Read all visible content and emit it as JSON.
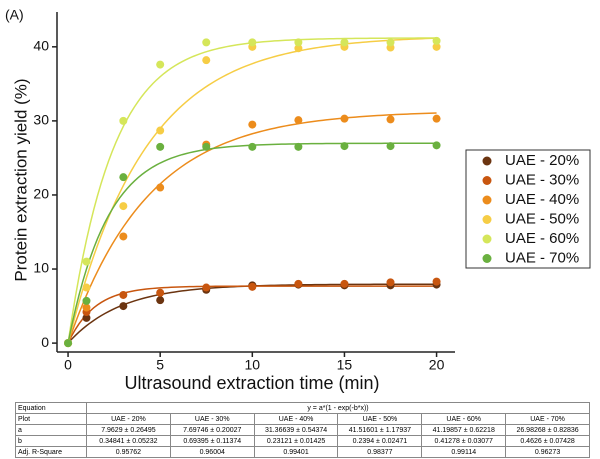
{
  "panel_label": "(A)",
  "chart_data": {
    "type": "scatter",
    "x_label": "Ultrasound extraction time (min)",
    "y_label": "Protein extraction yield (%)",
    "x": [
      0,
      1,
      3,
      5,
      7.5,
      10,
      12.5,
      15,
      17.5,
      20
    ],
    "xlim": [
      -0.6,
      21
    ],
    "xticks": [
      0,
      5,
      10,
      15,
      20
    ],
    "ylim": [
      -1.2,
      44.7
    ],
    "yticks": [
      0,
      10,
      20,
      30,
      40
    ],
    "grid": false,
    "legend": "right",
    "series": [
      {
        "name": "UAE - 20%",
        "color": "#6b3410",
        "values": [
          0,
          3.4,
          5,
          5.8,
          7.2,
          7.8,
          7.9,
          7.8,
          7.8,
          7.9
        ],
        "fit": {
          "a": 7.9629,
          "b": 0.34841
        }
      },
      {
        "name": "UAE - 30%",
        "color": "#c8560f",
        "values": [
          0,
          4.2,
          6.5,
          6.8,
          7.5,
          7.6,
          8,
          8,
          8.2,
          8.3
        ],
        "fit": {
          "a": 7.69746,
          "b": 0.69395
        }
      },
      {
        "name": "UAE - 40%",
        "color": "#ec8c1c",
        "values": [
          0,
          4.8,
          14.4,
          21,
          26.8,
          29.5,
          30.1,
          30.3,
          30.2,
          30.3
        ],
        "fit": {
          "a": 31.36639,
          "b": 0.23121
        }
      },
      {
        "name": "UAE - 50%",
        "color": "#f6cd45",
        "values": [
          0,
          7.5,
          18.5,
          28.7,
          38.2,
          40,
          39.8,
          40,
          39.9,
          40
        ],
        "fit": {
          "a": 41.51601,
          "b": 0.2394
        }
      },
      {
        "name": "UAE - 60%",
        "color": "#d5e65a",
        "values": [
          0,
          11,
          30,
          37.6,
          40.6,
          40.6,
          40.6,
          40.6,
          40.6,
          40.8
        ],
        "fit": {
          "a": 41.19857,
          "b": 0.41278
        }
      },
      {
        "name": "UAE - 70%",
        "color": "#6ab03f",
        "values": [
          0,
          5.7,
          22.4,
          26.5,
          26.5,
          26.5,
          26.5,
          26.6,
          26.6,
          26.7
        ],
        "fit": {
          "a": 26.98268,
          "b": 0.4626
        }
      }
    ]
  },
  "table": {
    "rows": [
      [
        "Equation",
        "y = a*(1 - exp(-b*x))"
      ],
      [
        "Plot",
        "UAE - 20%",
        "UAE - 30%",
        "UAE - 40%",
        "UAE - 50%",
        "UAE - 60%",
        "UAE - 70%"
      ],
      [
        "a",
        "7.9629 ± 0.26495",
        "7.69746 ± 0.20027",
        "31.36639 ± 0.54374",
        "41.51601 ± 1.17937",
        "41.19857 ± 0.62218",
        "26.98268 ± 0.82836"
      ],
      [
        "b",
        "0.34841 ± 0.05232",
        "0.69395 ± 0.11374",
        "0.23121 ± 0.01425",
        "0.2394 ± 0.02471",
        "0.41278 ± 0.03077",
        "0.4626 ± 0.07428"
      ],
      [
        "Adj. R-Square",
        "0.95762",
        "0.96004",
        "0.99401",
        "0.98377",
        "0.99114",
        "0.96273"
      ]
    ]
  }
}
